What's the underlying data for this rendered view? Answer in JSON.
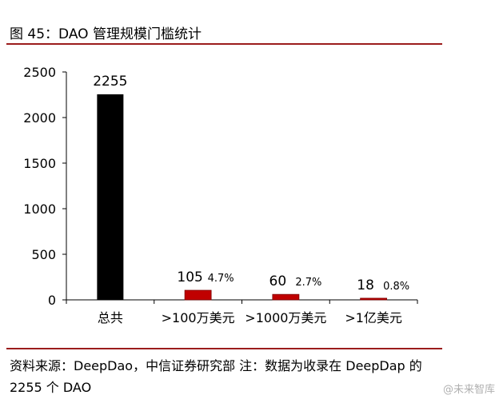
{
  "header": {
    "title": "图 45：DAO 管理规模门槛统计"
  },
  "footer": {
    "source": "资料来源：DeepDao，中信证券研究部 注：数据为收录在 DeepDap 的 2255 个 DAO",
    "watermark": "@未来智库"
  },
  "colors": {
    "rule": "#9b1c1c",
    "total_bar": "#000000",
    "other_bars": "#c00000"
  },
  "chart_data": {
    "type": "bar",
    "title": "",
    "xlabel": "",
    "ylabel": "",
    "ylim": [
      0,
      2500
    ],
    "yticks": [
      0,
      500,
      1000,
      1500,
      2000,
      2500
    ],
    "grid": false,
    "categories": [
      "总共",
      ">100万美元",
      ">1000万美元",
      ">1亿美元"
    ],
    "values": [
      2255,
      105,
      60,
      18
    ],
    "value_labels": [
      "2255",
      "105",
      "60",
      "18"
    ],
    "percent_labels": [
      "",
      "4.7%",
      "2.7%",
      "0.8%"
    ]
  }
}
